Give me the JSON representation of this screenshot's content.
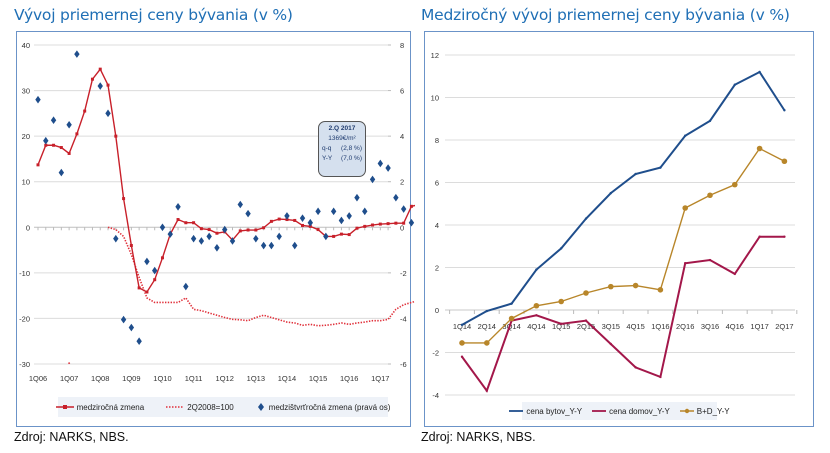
{
  "left": {
    "title": "Vývoj priemernej ceny bývania  (v %)",
    "source": "Zdroj: NARKS, NBS.",
    "callout": {
      "heading": "2.Q 2017",
      "price": "1369€/m²",
      "qq_label": "q-q",
      "qq_value": "(2,8 %)",
      "yy_label": "Y-Y",
      "yy_value": "(7,0 %)"
    },
    "legend": [
      "medziročná zmena",
      "2Q2008=100",
      "medzištvrťročná zmena (pravá os)"
    ]
  },
  "right": {
    "title": "Medziročný vývoj priemernej ceny bývania (v %)",
    "source": "Zdroj: NARKS, NBS.",
    "legend": [
      "cena bytov_Y-Y",
      "cena domov_Y-Y",
      "B+D_Y-Y"
    ]
  },
  "chart_data": [
    {
      "type": "line",
      "title": "Vývoj priemernej ceny bývania  (v %)",
      "xlabel": "",
      "ylabel": "",
      "x_ticks": [
        "1Q06",
        "1Q07",
        "1Q08",
        "1Q09",
        "1Q10",
        "1Q11",
        "1Q12",
        "1Q13",
        "1Q14",
        "1Q15",
        "1Q16",
        "1Q17"
      ],
      "x_start": "1Q06",
      "ylim": [
        -30,
        40
      ],
      "y_ticks": [
        40,
        30,
        20,
        10,
        0,
        -10,
        -20,
        -30
      ],
      "ylim_right": [
        -6,
        8
      ],
      "y_ticks_right": [
        8,
        6,
        4,
        2,
        0,
        -2,
        -4,
        -6
      ],
      "grid": true,
      "legend_position": "bottom",
      "series": [
        {
          "name": "medziročná zmena",
          "style": "solid-marker",
          "color": "#c8202a",
          "axis": "left",
          "start_index": 0,
          "values": [
            13.7,
            18,
            18,
            17.5,
            16.2,
            20.5,
            25.5,
            32.5,
            34.7,
            31.2,
            20,
            6.3,
            -4,
            -13.3,
            -14.2,
            -11.5,
            -6.7,
            -1.5,
            1.7,
            1,
            1,
            -0.3,
            -0.5,
            -1.3,
            -1,
            -2.8,
            -0.8,
            -0.6,
            -0.6,
            -0.1,
            1.3,
            1.8,
            1.7,
            1.5,
            0.4,
            0.2,
            -0.5,
            -2,
            -2,
            -1.5,
            -1.6,
            -0.2,
            0.2,
            0.5,
            0.7,
            0.8,
            0.9,
            0.9,
            4.6,
            5,
            5.2,
            5.8,
            7.6,
            7.0
          ]
        },
        {
          "name": "2Q2008=100",
          "style": "dotted",
          "color": "#e0303a",
          "axis": "left",
          "start_index": 9,
          "values": [
            0,
            -0.5,
            -2,
            -6,
            -11,
            -15.5,
            -16.5,
            -16.5,
            -16.5,
            -16.5,
            -15.5,
            -18,
            -18.3,
            -18.8,
            -19.3,
            -19.8,
            -20.2,
            -20.3,
            -20.5,
            -19.8,
            -19.3,
            -19.8,
            -20.3,
            -20.8,
            -21,
            -21.5,
            -21.3,
            -21.6,
            -21.5,
            -21.3,
            -21,
            -21.3,
            -21,
            -20.8,
            -20.5,
            -20.5,
            -20.2,
            -18,
            -17,
            -16.5,
            -16,
            -14.5,
            -12
          ]
        },
        {
          "name": "medzištvrťročná zmena (pravá os)",
          "style": "diamond-markers",
          "color": "#1f4e8c",
          "axis": "right",
          "points": [
            {
              "i": 0,
              "v": 5.6
            },
            {
              "i": 1,
              "v": 3.8
            },
            {
              "i": 2,
              "v": 4.7
            },
            {
              "i": 3,
              "v": 2.4
            },
            {
              "i": 4,
              "v": 4.5
            },
            {
              "i": 5,
              "v": 7.6
            },
            {
              "i": 8,
              "v": 6.2
            },
            {
              "i": 9,
              "v": 5
            },
            {
              "i": 10,
              "v": -0.5
            },
            {
              "i": 11,
              "v": -4.05
            },
            {
              "i": 12,
              "v": -4.4
            },
            {
              "i": 13,
              "v": -5
            },
            {
              "i": 14,
              "v": -1.5
            },
            {
              "i": 15,
              "v": -1.9
            },
            {
              "i": 16,
              "v": 0
            },
            {
              "i": 17,
              "v": -0.3
            },
            {
              "i": 18,
              "v": 0.9
            },
            {
              "i": 19,
              "v": -2.6
            },
            {
              "i": 20,
              "v": -0.5
            },
            {
              "i": 21,
              "v": -0.6
            },
            {
              "i": 22,
              "v": -0.4
            },
            {
              "i": 23,
              "v": -0.9
            },
            {
              "i": 24,
              "v": -0.1
            },
            {
              "i": 25,
              "v": -0.6
            },
            {
              "i": 26,
              "v": 1
            },
            {
              "i": 27,
              "v": 0.6
            },
            {
              "i": 28,
              "v": -0.5
            },
            {
              "i": 29,
              "v": -0.8
            },
            {
              "i": 30,
              "v": -0.8
            },
            {
              "i": 31,
              "v": -0.4
            },
            {
              "i": 32,
              "v": 0.5
            },
            {
              "i": 33,
              "v": -0.8
            },
            {
              "i": 34,
              "v": 0.4
            },
            {
              "i": 35,
              "v": 0.2
            },
            {
              "i": 36,
              "v": 0.7
            },
            {
              "i": 37,
              "v": -0.4
            },
            {
              "i": 38,
              "v": 0.7
            },
            {
              "i": 39,
              "v": 0.3
            },
            {
              "i": 40,
              "v": 0.5
            },
            {
              "i": 41,
              "v": 1.3
            },
            {
              "i": 42,
              "v": 0.7
            },
            {
              "i": 43,
              "v": 2.1
            },
            {
              "i": 44,
              "v": 2.8
            },
            {
              "i": 45,
              "v": 2.6
            },
            {
              "i": 46,
              "v": 1.3
            },
            {
              "i": 47,
              "v": 0.8
            },
            {
              "i": 48,
              "v": 0.2
            },
            {
              "i": 49,
              "v": 0.2
            },
            {
              "i": 50,
              "v": 1.3
            },
            {
              "i": 51,
              "v": 0.7
            },
            {
              "i": 52,
              "v": 2.1
            },
            {
              "i": 53,
              "v": 2.8
            }
          ]
        }
      ],
      "annotation": "2.Q 2017 1369€/m² q-q (2,8 %) Y-Y (7,0 %)"
    },
    {
      "type": "line",
      "title": "Medziročný vývoj priemernej ceny bývania (v %)",
      "xlabel": "",
      "ylabel": "",
      "categories": [
        "1Q14",
        "2Q14",
        "3Q14",
        "4Q14",
        "1Q15",
        "2Q15",
        "3Q15",
        "4Q15",
        "1Q16",
        "2Q16",
        "3Q16",
        "4Q16",
        "1Q17",
        "2Q17"
      ],
      "ylim": [
        -4,
        12
      ],
      "y_ticks": [
        12,
        10,
        8,
        6,
        4,
        2,
        0,
        -2,
        -4
      ],
      "grid": true,
      "legend_position": "bottom",
      "series": [
        {
          "name": "cena bytov_Y-Y",
          "color": "#1f4e8c",
          "values": [
            -0.7,
            -0.05,
            0.3,
            1.9,
            2.9,
            4.3,
            5.5,
            6.4,
            6.7,
            8.2,
            8.9,
            10.6,
            11.2,
            9.4
          ]
        },
        {
          "name": "cena domov_Y-Y",
          "color": "#a3174a",
          "values": [
            -2.2,
            -3.8,
            -0.5,
            -0.25,
            -0.65,
            -0.5,
            -1.6,
            -2.7,
            -3.15,
            2.2,
            2.35,
            1.7,
            3.45,
            3.45
          ]
        },
        {
          "name": "B+D_Y-Y",
          "color": "#b8862a",
          "values": [
            -1.55,
            -1.55,
            -0.4,
            0.2,
            0.4,
            0.8,
            1.1,
            1.15,
            0.95,
            4.8,
            5.4,
            5.9,
            7.6,
            7.0
          ]
        }
      ]
    }
  ]
}
